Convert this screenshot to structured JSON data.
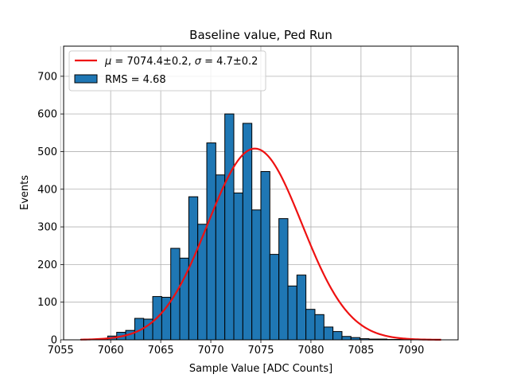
{
  "chart_data": {
    "type": "bar",
    "title": "Baseline value, Ped Run",
    "xlabel": "Sample Value [ADC Counts]",
    "ylabel": "Events",
    "xlim": [
      7055.3,
      7094.7
    ],
    "ylim": [
      0,
      780
    ],
    "xticks": [
      "7055",
      "7060",
      "7065",
      "7070",
      "7075",
      "7080",
      "7085",
      "7090"
    ],
    "yticks": [
      "0",
      "100",
      "200",
      "300",
      "400",
      "500",
      "600",
      "700"
    ],
    "grid": true,
    "legend_position": "top-left",
    "histogram": {
      "name": "RMS = 4.68",
      "bin_width": 0.9,
      "bin_start": 7057.0,
      "counts": [
        1,
        2,
        3,
        10,
        20,
        25,
        57,
        55,
        115,
        113,
        243,
        217,
        380,
        307,
        523,
        438,
        600,
        390,
        575,
        345,
        447,
        227,
        322,
        143,
        172,
        81,
        67,
        34,
        22,
        9,
        6,
        3,
        2,
        2,
        1,
        1,
        0,
        0,
        0,
        0
      ],
      "color": "#1f77b4",
      "edgecolor": "#000000"
    },
    "fit": {
      "name": "$\\mu = 7074.4\\pm0.2$, $\\sigma = 4.7\\pm0.2$",
      "type": "gaussian",
      "mean": 7074.4,
      "sigma": 4.7,
      "amplitude": 508,
      "x_range": [
        7057,
        7093
      ],
      "color": "#ee1111"
    },
    "legend": [
      {
        "label_prefix": "μ",
        "label_rest": " = 7074.4±0.2, ",
        "label_sigma": "σ",
        "label_tail": " = 4.7±0.2",
        "kind": "line"
      },
      {
        "label": "RMS = 4.68",
        "kind": "patch"
      }
    ]
  }
}
